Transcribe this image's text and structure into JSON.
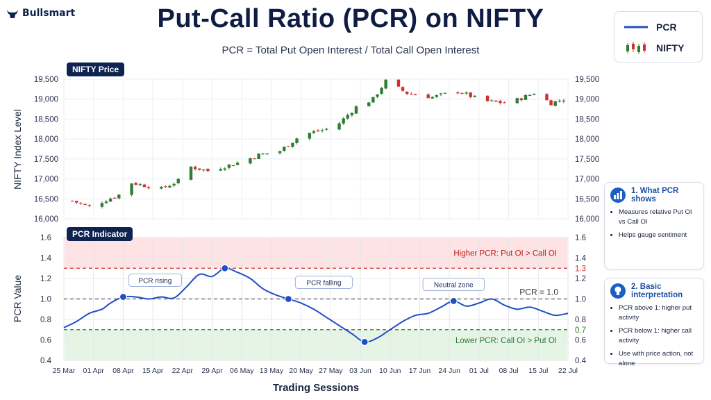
{
  "brand": {
    "name": "Bullsmart"
  },
  "title": "Put-Call Ratio (PCR) on NIFTY",
  "subtitle": "PCR = Total Put Open Interest / Total Call Open Interest",
  "legend": {
    "pcr_label": "PCR",
    "nifty_label": "NIFTY"
  },
  "colors": {
    "up": "#2e7d32",
    "down": "#d32f2f",
    "pcr_line": "#1f4fc4",
    "upper_zone": "#fde3e3",
    "lower_zone": "#e6f4e6",
    "navy": "#0f2350"
  },
  "info_panels": [
    {
      "icon": "bar-chart-icon",
      "title": "1. What PCR shows",
      "points": [
        "Measures relative Put OI vs Call OI",
        "Helps gauge sentiment"
      ]
    },
    {
      "icon": "lightbulb-icon",
      "title": "2. Basic interpretation",
      "points": [
        "PCR above 1: higher put activity",
        "PCR below 1: higher call activity",
        "Use with price action, not alone"
      ]
    }
  ],
  "chart_data": [
    {
      "type": "candlestick",
      "panel_label": "NIFTY Price",
      "ylabel": "NIFTY Index Level",
      "ylim": [
        16000,
        19500
      ],
      "yticks": [
        16000,
        16500,
        17000,
        17500,
        18000,
        18500,
        19000,
        19500
      ],
      "ytick_labels": [
        "16,000",
        "16,500",
        "17,000",
        "17,500",
        "18,000",
        "18,500",
        "19,000",
        "19,500"
      ],
      "x_range": [
        "2023-03-25",
        "2023-07-22"
      ],
      "closes_anchor": [
        [
          "2023-03-27",
          16450
        ],
        [
          "2023-03-31",
          16300
        ],
        [
          "2023-04-07",
          16600
        ],
        [
          "2023-04-10",
          16900
        ],
        [
          "2023-04-17",
          16750
        ],
        [
          "2023-04-21",
          16950
        ],
        [
          "2023-04-24",
          17300
        ],
        [
          "2023-04-28",
          17200
        ],
        [
          "2023-05-05",
          17400
        ],
        [
          "2023-05-10",
          17600
        ],
        [
          "2023-05-15",
          17700
        ],
        [
          "2023-05-20",
          18100
        ],
        [
          "2023-05-28",
          18300
        ],
        [
          "2023-06-02",
          18800
        ],
        [
          "2023-06-06",
          19000
        ],
        [
          "2023-06-09",
          19450
        ],
        [
          "2023-06-14",
          19150
        ],
        [
          "2023-06-20",
          19050
        ],
        [
          "2023-06-26",
          19200
        ],
        [
          "2023-07-02",
          18950
        ],
        [
          "2023-07-08",
          18900
        ],
        [
          "2023-07-14",
          19150
        ],
        [
          "2023-07-18",
          18900
        ],
        [
          "2023-07-21",
          19000
        ]
      ]
    },
    {
      "type": "line",
      "panel_label": "PCR Indicator",
      "ylabel": "PCR Value",
      "xlabel": "Trading Sessions",
      "ylim": [
        0.4,
        1.6
      ],
      "yticks": [
        0.4,
        0.6,
        0.8,
        1.0,
        1.2,
        1.4,
        1.6
      ],
      "ytick_labels": [
        "0.4",
        "0.6",
        "0.8",
        "1.0",
        "1.2",
        "1.4",
        "1.6"
      ],
      "x_range": [
        "2023-03-25",
        "2023-07-22"
      ],
      "xtick_dates": [
        "2023-03-25",
        "2023-04-01",
        "2023-04-08",
        "2023-04-15",
        "2023-04-22",
        "2023-04-29",
        "2023-05-06",
        "2023-05-13",
        "2023-05-20",
        "2023-05-27",
        "2023-06-03",
        "2023-06-10",
        "2023-06-17",
        "2023-06-24",
        "2023-07-01",
        "2023-07-08",
        "2023-07-15",
        "2023-07-22"
      ],
      "xtick_labels": [
        "25 Mar",
        "01 Apr",
        "08 Apr",
        "15 Apr",
        "22 Apr",
        "29 Apr",
        "06 May",
        "13 May",
        "20 May",
        "27 May",
        "03 Jun",
        "10 Jun",
        "17 Jun",
        "24 Jun",
        "01 Jul",
        "08 Jul",
        "15 Jul",
        "22 Jul"
      ],
      "series": [
        {
          "name": "PCR",
          "points": [
            [
              "2023-03-25",
              0.72
            ],
            [
              "2023-03-28",
              0.78
            ],
            [
              "2023-03-31",
              0.86
            ],
            [
              "2023-04-03",
              0.9
            ],
            [
              "2023-04-05",
              0.96
            ],
            [
              "2023-04-08",
              1.02
            ],
            [
              "2023-04-11",
              1.02
            ],
            [
              "2023-04-14",
              1.0
            ],
            [
              "2023-04-17",
              1.02
            ],
            [
              "2023-04-20",
              1.01
            ],
            [
              "2023-04-23",
              1.12
            ],
            [
              "2023-04-26",
              1.24
            ],
            [
              "2023-04-29",
              1.22
            ],
            [
              "2023-05-02",
              1.3
            ],
            [
              "2023-05-05",
              1.26
            ],
            [
              "2023-05-08",
              1.2
            ],
            [
              "2023-05-11",
              1.1
            ],
            [
              "2023-05-14",
              1.04
            ],
            [
              "2023-05-17",
              1.0
            ],
            [
              "2023-05-20",
              0.96
            ],
            [
              "2023-05-23",
              0.9
            ],
            [
              "2023-05-26",
              0.82
            ],
            [
              "2023-05-29",
              0.74
            ],
            [
              "2023-06-01",
              0.66
            ],
            [
              "2023-06-04",
              0.58
            ],
            [
              "2023-06-07",
              0.62
            ],
            [
              "2023-06-10",
              0.7
            ],
            [
              "2023-06-13",
              0.78
            ],
            [
              "2023-06-16",
              0.84
            ],
            [
              "2023-06-19",
              0.86
            ],
            [
              "2023-06-22",
              0.92
            ],
            [
              "2023-06-25",
              0.98
            ],
            [
              "2023-06-28",
              0.93
            ],
            [
              "2023-07-01",
              0.96
            ],
            [
              "2023-07-04",
              1.0
            ],
            [
              "2023-07-07",
              0.94
            ],
            [
              "2023-07-10",
              0.9
            ],
            [
              "2023-07-13",
              0.92
            ],
            [
              "2023-07-16",
              0.88
            ],
            [
              "2023-07-19",
              0.84
            ],
            [
              "2023-07-22",
              0.86
            ]
          ]
        }
      ],
      "reference_lines": [
        {
          "value": 1.3,
          "label": "1.3",
          "color": "#d32f2f"
        },
        {
          "value": 1.0,
          "label": "PCR = 1.0",
          "color": "#555555"
        },
        {
          "value": 0.7,
          "label": "0.7",
          "color": "#2e7d32"
        }
      ],
      "zones": [
        {
          "from": 1.3,
          "to": 1.6,
          "label": "Higher PCR: Put OI > Call OI"
        },
        {
          "from": 0.4,
          "to": 0.7,
          "label": "Lower PCR: Call OI > Put OI"
        }
      ],
      "annotations": [
        {
          "date": "2023-04-08",
          "value": 1.02,
          "text": "PCR rising"
        },
        {
          "date": "2023-05-02",
          "value": 1.3,
          "text": ""
        },
        {
          "date": "2023-05-17",
          "value": 1.0,
          "text": "PCR falling"
        },
        {
          "date": "2023-06-04",
          "value": 0.58,
          "text": ""
        },
        {
          "date": "2023-06-25",
          "value": 0.98,
          "text": "Neutral zone"
        }
      ]
    }
  ]
}
